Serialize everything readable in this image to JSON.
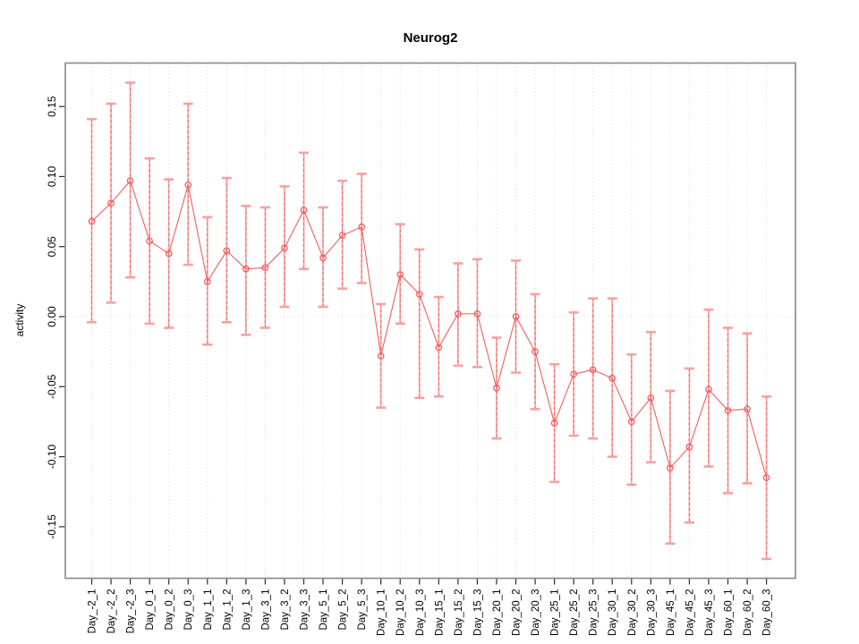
{
  "chart_data": {
    "type": "line",
    "title": "Neurog2",
    "xlabel": "",
    "ylabel": "activity",
    "ylim": [
      -0.187,
      0.181
    ],
    "yticks": [
      0.15,
      0.1,
      0.05,
      0.0,
      -0.05,
      -0.1,
      -0.15
    ],
    "ytick_labels": [
      "0.15",
      "0.10",
      "0.05",
      "0.00",
      "-0.05",
      "-0.10",
      "-0.15"
    ],
    "grid": {
      "vertical_dotted_per_category": true,
      "zero_line_dotted": true
    },
    "legend": "none",
    "marker": "open-circle",
    "categories": [
      "Day_-2_1",
      "Day_-2_2",
      "Day_-2_3",
      "Day_0_1",
      "Day_0_2",
      "Day_0_3",
      "Day_1_1",
      "Day_1_2",
      "Day_1_3",
      "Day_3_1",
      "Day_3_2",
      "Day_3_3",
      "Day_5_1",
      "Day_5_2",
      "Day_5_3",
      "Day_10_1",
      "Day_10_2",
      "Day_10_3",
      "Day_15_1",
      "Day_15_2",
      "Day_15_3",
      "Day_20_1",
      "Day_20_2",
      "Day_20_3",
      "Day_25_1",
      "Day_25_2",
      "Day_25_3",
      "Day_30_1",
      "Day_30_2",
      "Day_30_3",
      "Day_45_1",
      "Day_45_2",
      "Day_45_3",
      "Day_60_1",
      "Day_60_2",
      "Day_60_3"
    ],
    "series": [
      {
        "name": "activity",
        "values": [
          0.068,
          0.081,
          0.097,
          0.054,
          0.045,
          0.094,
          0.025,
          0.047,
          0.034,
          0.035,
          0.049,
          0.076,
          0.042,
          0.058,
          0.064,
          -0.028,
          0.03,
          0.016,
          -0.022,
          0.002,
          0.002,
          -0.051,
          0.0,
          -0.025,
          -0.076,
          -0.041,
          -0.038,
          -0.044,
          -0.075,
          -0.058,
          -0.108,
          -0.093,
          -0.052,
          -0.067,
          -0.066,
          -0.115
        ],
        "err_high": [
          0.141,
          0.152,
          0.167,
          0.113,
          0.098,
          0.152,
          0.071,
          0.099,
          0.079,
          0.078,
          0.093,
          0.117,
          0.078,
          0.097,
          0.102,
          0.009,
          0.066,
          0.048,
          0.014,
          0.038,
          0.041,
          -0.015,
          0.04,
          0.016,
          -0.034,
          0.003,
          0.013,
          0.013,
          -0.027,
          -0.011,
          -0.053,
          -0.037,
          0.005,
          -0.008,
          -0.012,
          -0.057
        ],
        "err_low": [
          -0.004,
          0.01,
          0.028,
          -0.005,
          -0.008,
          0.037,
          -0.02,
          -0.004,
          -0.013,
          -0.008,
          0.007,
          0.034,
          0.007,
          0.02,
          0.024,
          -0.065,
          -0.005,
          -0.058,
          -0.057,
          -0.035,
          -0.036,
          -0.087,
          -0.04,
          -0.066,
          -0.118,
          -0.085,
          -0.087,
          -0.1,
          -0.12,
          -0.104,
          -0.162,
          -0.147,
          -0.107,
          -0.126,
          -0.119,
          -0.173
        ]
      }
    ],
    "colors": {
      "series": "#f15e5e",
      "error_cap": "#f9a0a0",
      "error_line_solid": "#f9a6a6",
      "error_line_dash": "#ef5a5a",
      "grid": "#d6d6d6",
      "zero_line": "#dcdcdc",
      "box_border": "#8e8e8e",
      "tick": "#2b2b2b",
      "text": "#000000"
    }
  }
}
